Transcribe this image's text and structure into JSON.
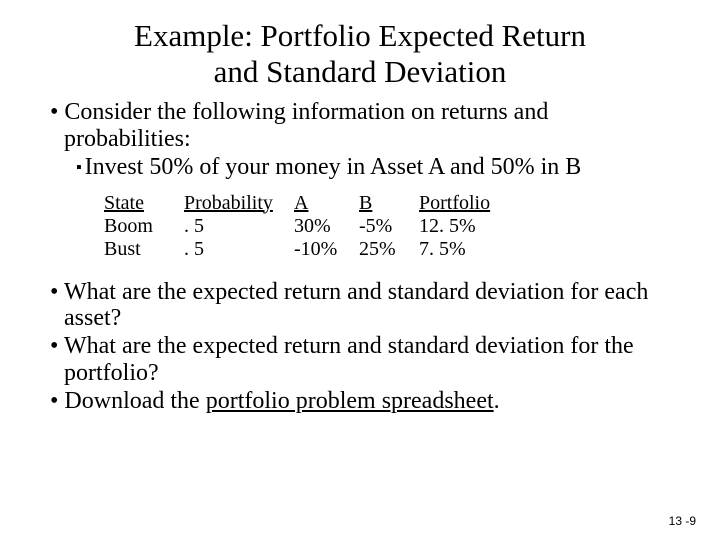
{
  "title_line1": "Example: Portfolio Expected Return",
  "title_line2": "and  Standard Deviation",
  "bullets": {
    "b1": "Consider the following information on returns and probabilities:",
    "b1a": "Invest 50% of your money in Asset A and 50% in B",
    "b2": "What are the expected return and standard deviation for each asset?",
    "b3": "What are the expected return and standard deviation for the portfolio?",
    "b4_pre": "Download the ",
    "b4_link": "portfolio problem spreadsheet",
    "b4_post": "."
  },
  "table": {
    "headers": {
      "state": "State",
      "prob": "Probability",
      "a": "A",
      "b": "B",
      "port": "Portfolio"
    },
    "rows": [
      {
        "state": "Boom",
        "prob": ". 5",
        "a": "30%",
        "b": "-5%",
        "port": "12. 5%"
      },
      {
        "state": "Bust",
        "prob": ". 5",
        "a": "-10%",
        "b": "25%",
        "port": "7. 5%"
      }
    ]
  },
  "footer": "13 -9",
  "colors": {
    "text": "#000000",
    "background": "#ffffff"
  }
}
